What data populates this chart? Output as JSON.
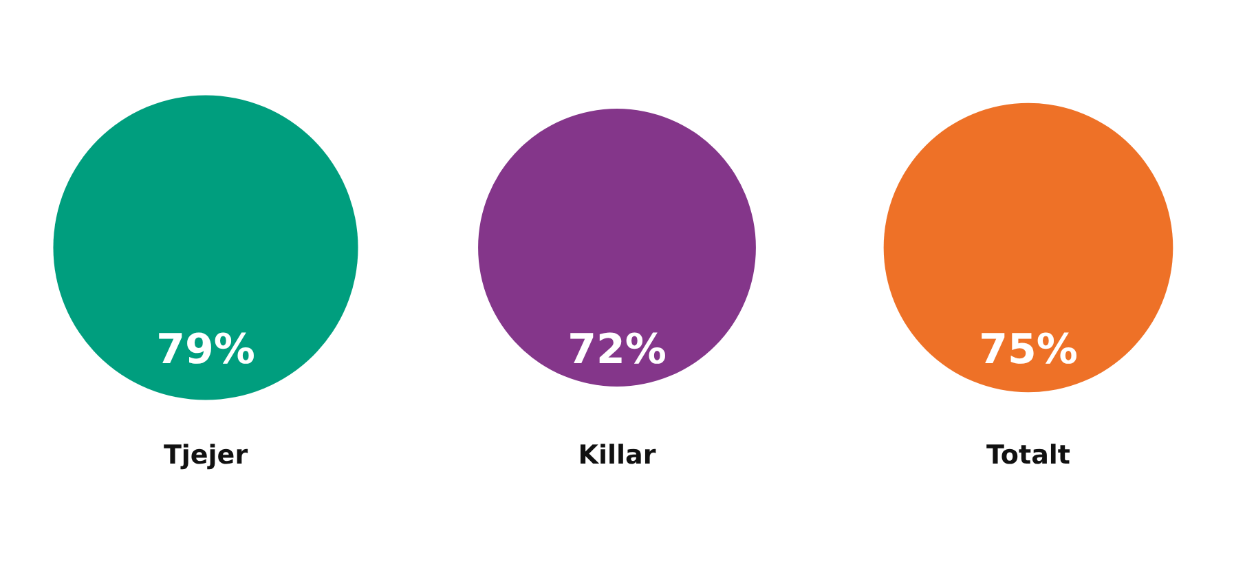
{
  "chart_data": {
    "type": "other",
    "categories": [
      "Tjejer",
      "Killar",
      "Totalt"
    ],
    "values": [
      79,
      72,
      75
    ],
    "colors": [
      "#009e7e",
      "#84368a",
      "#ee7127"
    ],
    "value_labels": [
      "79%",
      "72%",
      "75%"
    ]
  }
}
